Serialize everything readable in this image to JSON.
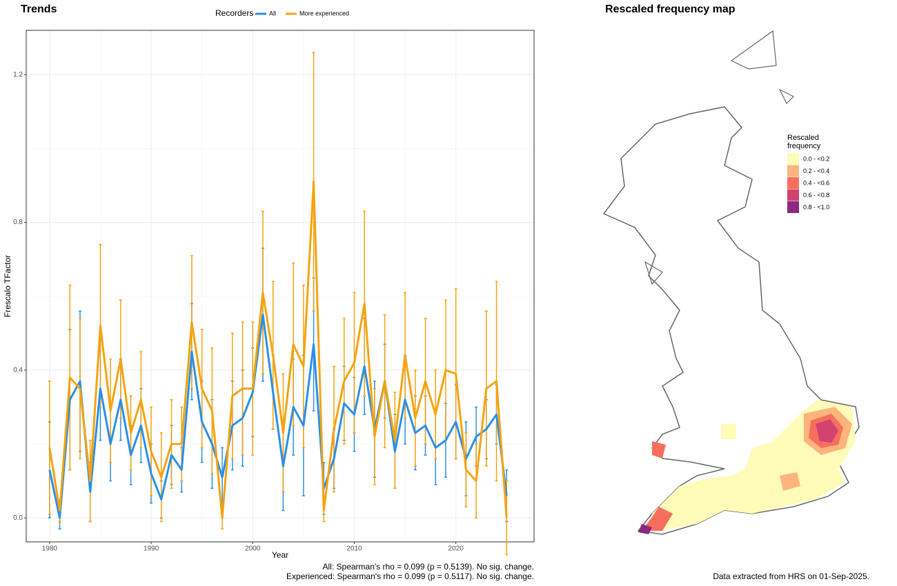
{
  "chart_data": [
    {
      "type": "line",
      "title": "Trends",
      "legend_title": "Recorders",
      "x_label": "Year",
      "y_label": "Frescalo TFactor",
      "x": [
        1980,
        1981,
        1982,
        1983,
        1984,
        1985,
        1986,
        1987,
        1988,
        1989,
        1990,
        1991,
        1992,
        1993,
        1994,
        1995,
        1996,
        1997,
        1998,
        1999,
        2000,
        2001,
        2002,
        2003,
        2004,
        2005,
        2006,
        2007,
        2008,
        2009,
        2010,
        2011,
        2012,
        2013,
        2014,
        2015,
        2016,
        2017,
        2018,
        2019,
        2020,
        2021,
        2022,
        2023,
        2024,
        2025
      ],
      "series": [
        {
          "name": "All",
          "color": "#2b8fe6",
          "values": [
            0.13,
            0.0,
            0.32,
            0.37,
            0.07,
            0.35,
            0.2,
            0.32,
            0.17,
            0.25,
            0.12,
            0.05,
            0.17,
            0.13,
            0.45,
            0.26,
            0.2,
            0.11,
            0.25,
            0.27,
            0.34,
            0.55,
            0.34,
            0.14,
            0.3,
            0.25,
            0.47,
            0.08,
            0.16,
            0.31,
            0.28,
            0.41,
            0.24,
            0.37,
            0.18,
            0.32,
            0.23,
            0.25,
            0.19,
            0.21,
            0.26,
            0.16,
            0.22,
            0.24,
            0.28,
            0.06
          ],
          "errors": [
            0.13,
            0.03,
            0.19,
            0.19,
            0.08,
            0.14,
            0.1,
            0.11,
            0.08,
            0.1,
            0.08,
            0.05,
            0.08,
            0.06,
            0.13,
            0.11,
            0.12,
            0.08,
            0.12,
            0.13,
            0.12,
            0.18,
            0.1,
            0.12,
            0.13,
            0.19,
            0.18,
            0.07,
            0.08,
            0.1,
            0.1,
            0.13,
            0.13,
            0.1,
            0.1,
            0.12,
            0.1,
            0.08,
            0.1,
            0.1,
            0.1,
            0.1,
            0.08,
            0.08,
            0.08,
            0.07
          ]
        },
        {
          "name": "More experienced",
          "color": "#f5a30f",
          "values": [
            0.19,
            0.02,
            0.38,
            0.35,
            0.1,
            0.52,
            0.29,
            0.43,
            0.23,
            0.32,
            0.18,
            0.11,
            0.2,
            0.2,
            0.53,
            0.35,
            0.29,
            0.0,
            0.33,
            0.35,
            0.35,
            0.61,
            0.44,
            0.23,
            0.47,
            0.41,
            0.91,
            0.02,
            0.24,
            0.37,
            0.42,
            0.58,
            0.22,
            0.37,
            0.21,
            0.44,
            0.27,
            0.37,
            0.28,
            0.4,
            0.39,
            0.13,
            0.1,
            0.35,
            0.37,
            0.0
          ],
          "errors": [
            0.18,
            0.03,
            0.25,
            0.19,
            0.11,
            0.22,
            0.14,
            0.16,
            0.1,
            0.13,
            0.12,
            0.12,
            0.12,
            0.1,
            0.18,
            0.16,
            0.17,
            0.03,
            0.17,
            0.18,
            0.18,
            0.22,
            0.2,
            0.16,
            0.22,
            0.22,
            0.35,
            0.03,
            0.17,
            0.17,
            0.19,
            0.25,
            0.13,
            0.18,
            0.13,
            0.17,
            0.13,
            0.17,
            0.12,
            0.19,
            0.23,
            0.1,
            0.1,
            0.21,
            0.27,
            0.1
          ]
        }
      ],
      "xlim": [
        1977.7,
        2027.7
      ],
      "xticks": [
        1980,
        1990,
        2000,
        2010,
        2020
      ],
      "ylim": [
        -0.065,
        1.32
      ],
      "yticks": [
        {
          "value": 0,
          "label": "0.0"
        },
        0.4,
        0.8,
        1.2
      ],
      "grid": true,
      "notes": [
        "All: Spearman's rho = 0.099 (p = 0.5139). No sig. change.",
        "Experienced: Spearman's rho = 0.099 (p = 0.5117). No sig. change."
      ]
    },
    {
      "type": "map",
      "title": "Rescaled frequency map",
      "legend_title": [
        "Rescaled",
        "frequency"
      ],
      "legend": [
        {
          "label": "0.0 - <0.2",
          "color": "#fffbb8"
        },
        {
          "label": "0.2 - <0.4",
          "color": "#fdb47d"
        },
        {
          "label": "0.4 - <0.6",
          "color": "#f76f5c"
        },
        {
          "label": "0.6 - <0.8",
          "color": "#d1426f"
        },
        {
          "label": "0.8 - <1.0",
          "color": "#8c2981"
        }
      ],
      "footnote": "Data extracted from HRS on 01-Sep-2025."
    }
  ]
}
